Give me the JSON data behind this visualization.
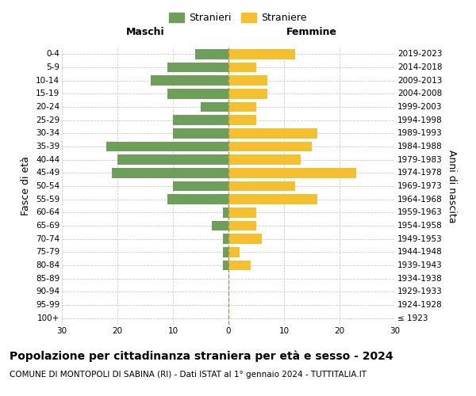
{
  "age_groups": [
    "100+",
    "95-99",
    "90-94",
    "85-89",
    "80-84",
    "75-79",
    "70-74",
    "65-69",
    "60-64",
    "55-59",
    "50-54",
    "45-49",
    "40-44",
    "35-39",
    "30-34",
    "25-29",
    "20-24",
    "15-19",
    "10-14",
    "5-9",
    "0-4"
  ],
  "birth_years": [
    "≤ 1923",
    "1924-1928",
    "1929-1933",
    "1934-1938",
    "1939-1943",
    "1944-1948",
    "1949-1953",
    "1954-1958",
    "1959-1963",
    "1964-1968",
    "1969-1973",
    "1974-1978",
    "1979-1983",
    "1984-1988",
    "1989-1993",
    "1994-1998",
    "1999-2003",
    "2004-2008",
    "2009-2013",
    "2014-2018",
    "2019-2023"
  ],
  "maschi": [
    0,
    0,
    0,
    0,
    1,
    1,
    1,
    3,
    1,
    11,
    10,
    21,
    20,
    22,
    10,
    10,
    5,
    11,
    14,
    11,
    6
  ],
  "femmine": [
    0,
    0,
    0,
    0,
    4,
    2,
    6,
    5,
    5,
    16,
    12,
    23,
    13,
    15,
    16,
    5,
    5,
    7,
    7,
    5,
    12
  ],
  "color_maschi": "#6d9e5a",
  "color_femmine": "#f5c030",
  "xlim": 30,
  "title": "Popolazione per cittadinanza straniera per età e sesso - 2024",
  "subtitle": "COMUNE DI MONTOPOLI DI SABINA (RI) - Dati ISTAT al 1° gennaio 2024 - TUTTITALIA.IT",
  "ylabel_left": "Fasce di età",
  "ylabel_right": "Anni di nascita",
  "xlabel_maschi": "Maschi",
  "xlabel_femmine": "Femmine",
  "legend_maschi": "Stranieri",
  "legend_femmine": "Straniere",
  "bg_color": "#ffffff",
  "grid_color": "#cccccc",
  "title_fontsize": 10,
  "subtitle_fontsize": 7.5,
  "label_fontsize": 9,
  "tick_fontsize": 7.5,
  "header_fontsize": 9
}
